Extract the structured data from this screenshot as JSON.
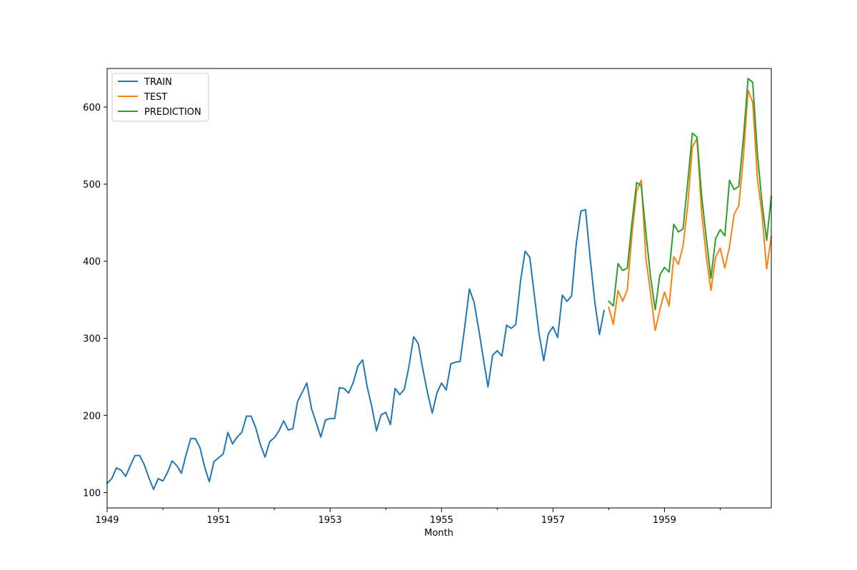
{
  "chart_data": {
    "type": "line",
    "title": "",
    "xlabel": "Month",
    "ylabel": "",
    "xlim": [
      "1949-01",
      "1960-12"
    ],
    "ylim": [
      80,
      650
    ],
    "x_ticks": [
      "1949",
      "1951",
      "1953",
      "1955",
      "1957",
      "1959"
    ],
    "y_ticks": [
      "100",
      "200",
      "300",
      "400",
      "500",
      "600"
    ],
    "grid": false,
    "legend_position": "top-left",
    "series": [
      {
        "name": "TRAIN",
        "color": "#1f77b4",
        "start": "1949-01",
        "values": [
          112,
          118,
          132,
          129,
          121,
          135,
          148,
          148,
          136,
          119,
          104,
          118,
          115,
          126,
          141,
          135,
          125,
          149,
          170,
          170,
          158,
          133,
          114,
          140,
          145,
          150,
          178,
          163,
          172,
          178,
          199,
          199,
          184,
          162,
          146,
          166,
          171,
          180,
          193,
          181,
          183,
          218,
          230,
          242,
          209,
          191,
          172,
          194,
          196,
          196,
          236,
          235,
          229,
          243,
          264,
          272,
          237,
          211,
          180,
          201,
          204,
          188,
          235,
          227,
          234,
          264,
          302,
          293,
          259,
          229,
          203,
          229,
          242,
          233,
          267,
          269,
          270,
          315,
          364,
          347,
          312,
          274,
          237,
          278,
          284,
          277,
          317,
          313,
          318,
          374,
          413,
          405,
          355,
          306,
          271,
          306,
          315,
          301,
          356,
          348,
          355,
          422,
          465,
          467,
          404,
          347,
          305,
          336
        ]
      },
      {
        "name": "TEST",
        "color": "#ff7f0e",
        "start": "1958-01",
        "values": [
          340,
          318,
          362,
          348,
          363,
          435,
          491,
          505,
          404,
          359,
          310,
          337,
          360,
          342,
          406,
          396,
          420,
          472,
          548,
          559,
          463,
          407,
          362,
          405,
          417,
          391,
          419,
          461,
          472,
          535,
          622,
          606,
          508,
          461,
          390,
          432
        ]
      },
      {
        "name": "PREDICTION",
        "color": "#2ca02c",
        "start": "1958-01",
        "values": [
          348,
          342,
          397,
          388,
          391,
          450,
          502,
          498,
          437,
          380,
          337,
          382,
          392,
          386,
          448,
          438,
          442,
          502,
          566,
          561,
          485,
          430,
          378,
          429,
          441,
          433,
          505,
          493,
          497,
          560,
          637,
          632,
          540,
          476,
          427,
          484
        ]
      }
    ]
  }
}
